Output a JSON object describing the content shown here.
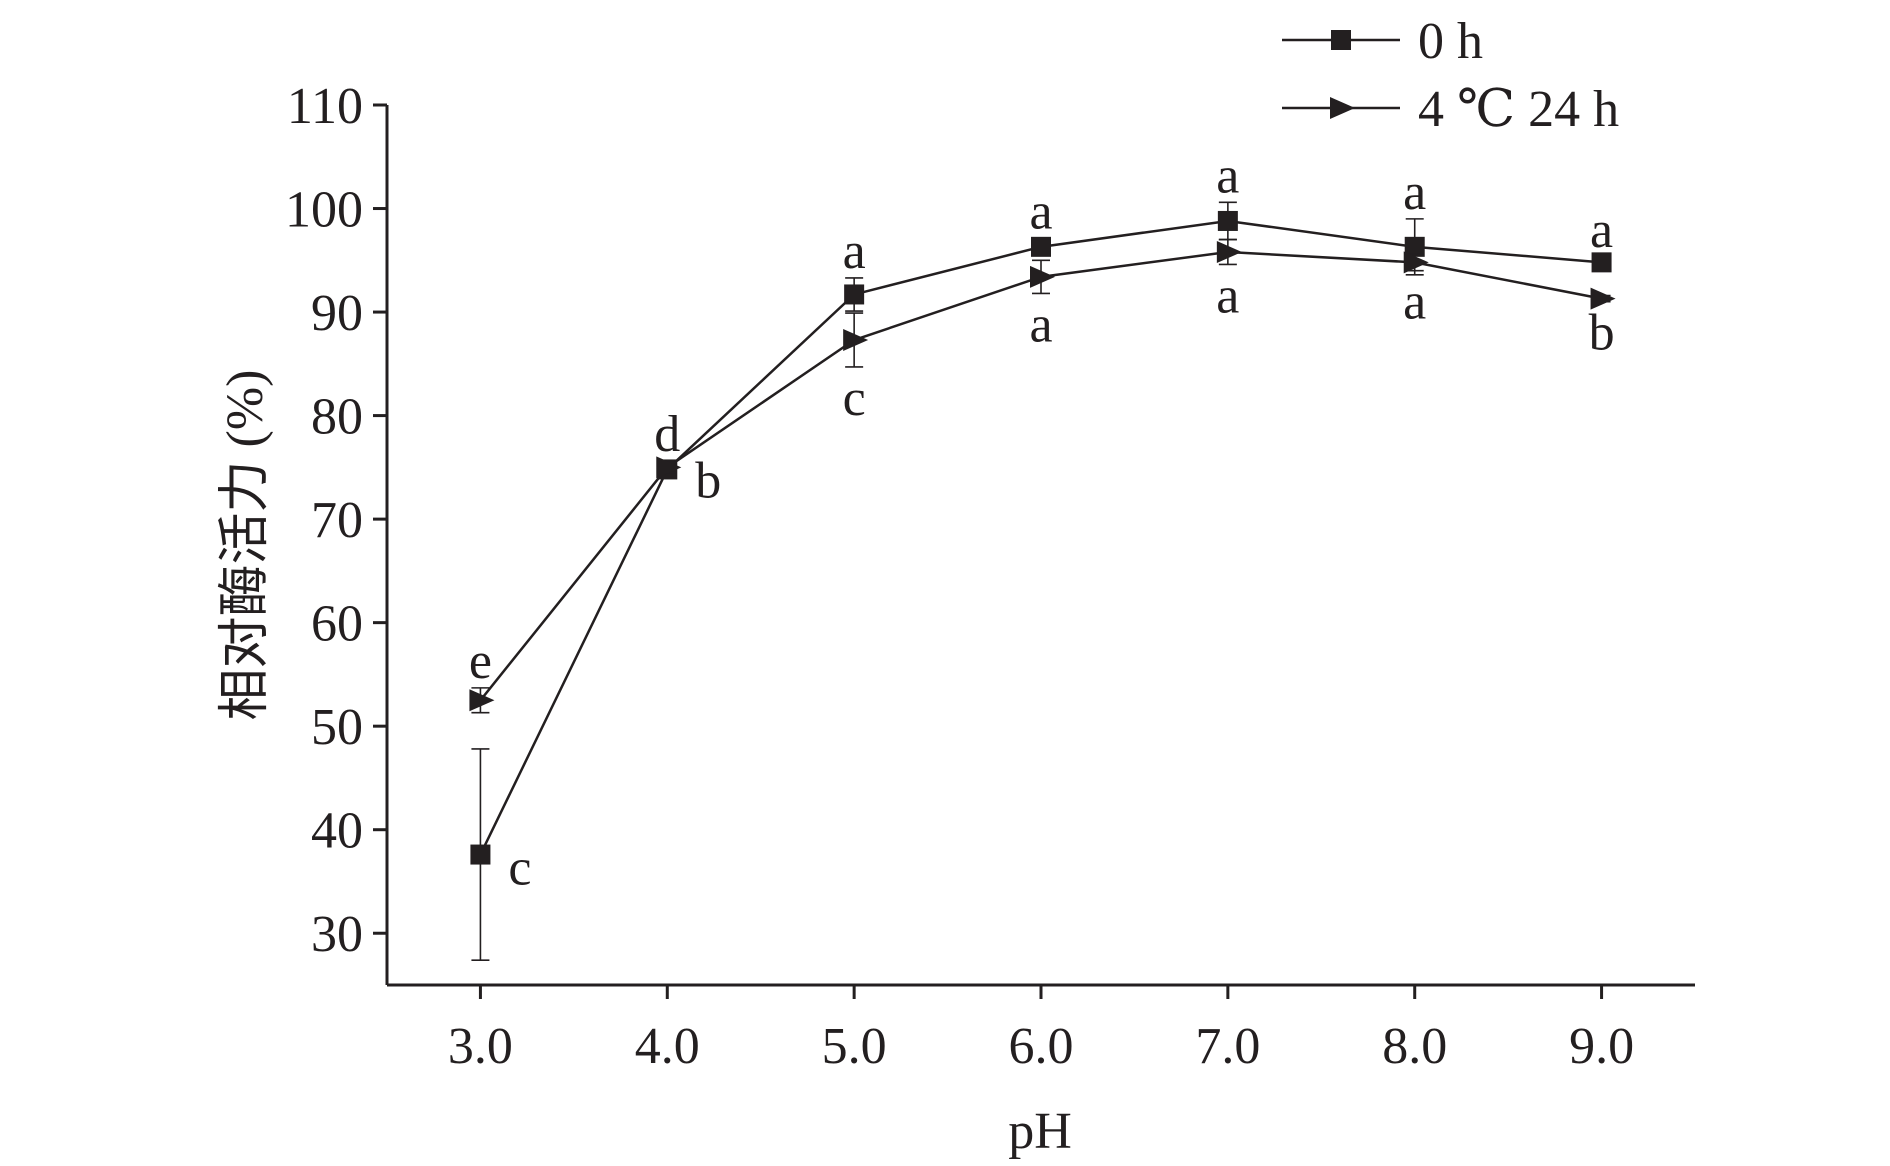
{
  "chart_data": {
    "type": "line",
    "xlabel": "pH",
    "ylabel": "相对酶活力 (%)",
    "x": [
      3.0,
      4.0,
      5.0,
      6.0,
      7.0,
      8.0,
      9.0
    ],
    "xtick_labels": [
      "3.0",
      "4.0",
      "5.0",
      "6.0",
      "7.0",
      "8.0",
      "9.0"
    ],
    "xlim": [
      2.5,
      9.5
    ],
    "ylim": [
      25,
      110
    ],
    "yticks": [
      30,
      40,
      50,
      60,
      70,
      80,
      90,
      100,
      110
    ],
    "ytick_labels": [
      "30",
      "40",
      "50",
      "60",
      "70",
      "80",
      "90",
      "100",
      "110"
    ],
    "grid": false,
    "legend_position": "top-right",
    "series": [
      {
        "name": "0 h",
        "marker": "square",
        "values": [
          37.6,
          74.8,
          91.7,
          96.3,
          98.8,
          96.3,
          94.8
        ],
        "errors": [
          10.2,
          0.8,
          1.6,
          0.8,
          1.8,
          2.7,
          0.5
        ],
        "sig_labels": [
          "c",
          "d",
          "a",
          "a",
          "a",
          "a",
          "a"
        ],
        "label_side": [
          "right",
          "above",
          "above",
          "above",
          "above",
          "above",
          "above"
        ]
      },
      {
        "name": "4 ℃ 24 h",
        "marker": "triangle-right",
        "values": [
          52.5,
          75.0,
          87.3,
          93.4,
          95.8,
          94.8,
          91.3
        ],
        "errors": [
          1.2,
          0.5,
          2.6,
          1.6,
          1.2,
          0.8,
          0.3
        ],
        "sig_labels": [
          "e",
          "b",
          "c",
          "a",
          "a",
          "a",
          "b"
        ],
        "label_side": [
          "above",
          "right",
          "below",
          "below",
          "below",
          "below",
          "below"
        ]
      }
    ]
  }
}
